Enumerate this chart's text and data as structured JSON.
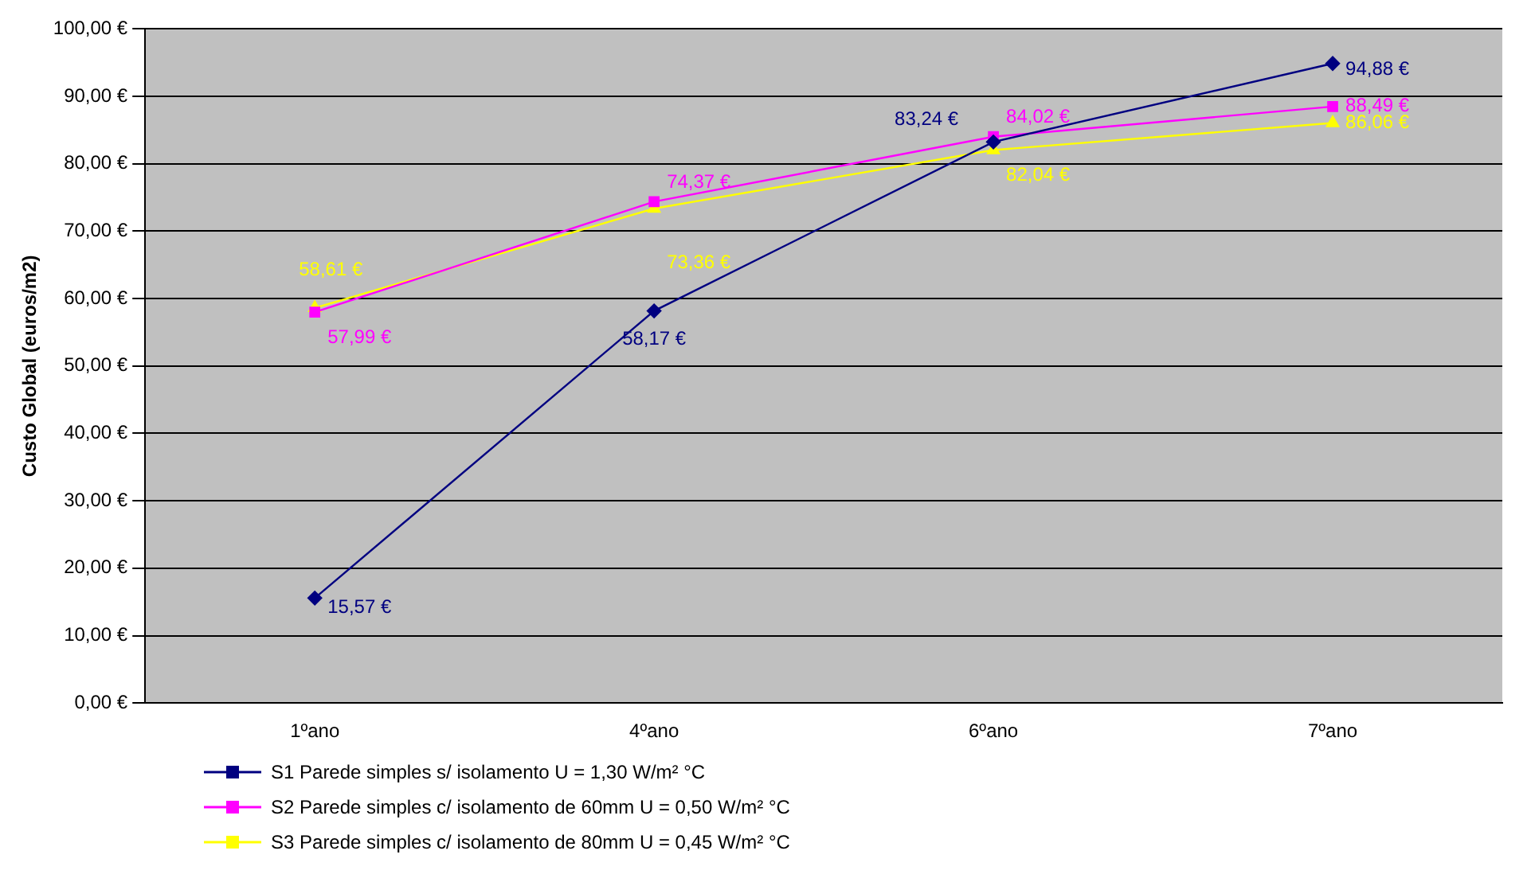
{
  "chart_data": {
    "type": "line",
    "ylabel": "Custo Global (euros/m2)",
    "categories": [
      "1ºano",
      "4ºano",
      "6ºano",
      "7ºano"
    ],
    "series": [
      {
        "name": "S1 Parede simples s/ isolamento U = 1,30 W/m² °C",
        "color": "#000080",
        "marker": "diamond",
        "values": [
          15.57,
          58.17,
          83.24,
          94.88
        ],
        "value_labels": [
          "15,57 €",
          "58,17 €",
          "83,24 €",
          "94,88 €"
        ]
      },
      {
        "name": "S2 Parede simples c/ isolamento de 60mm U = 0,50 W/m² °C",
        "color": "#ff00ff",
        "marker": "square",
        "values": [
          57.99,
          74.37,
          84.02,
          88.49
        ],
        "value_labels": [
          "57,99 €",
          "74,37 €",
          "84,02 €",
          "88,49 €"
        ]
      },
      {
        "name": "S3 Parede simples c/ isolamento de 80mm U = 0,45 W/m² °C",
        "color": "#ffff00",
        "marker": "triangle",
        "values": [
          58.61,
          73.36,
          82.04,
          86.06
        ],
        "value_labels": [
          "58,61 €",
          "73,36 €",
          "82,04 €",
          "86,06 €"
        ]
      }
    ],
    "ylim": [
      0,
      100
    ],
    "yticks": [
      {
        "value": 0,
        "label": "0,00 €"
      },
      {
        "value": 10,
        "label": "10,00 €"
      },
      {
        "value": 20,
        "label": "20,00 €"
      },
      {
        "value": 30,
        "label": "30,00 €"
      },
      {
        "value": 40,
        "label": "40,00 €"
      },
      {
        "value": 50,
        "label": "50,00 €"
      },
      {
        "value": 60,
        "label": "60,00 €"
      },
      {
        "value": 70,
        "label": "70,00 €"
      },
      {
        "value": 80,
        "label": "80,00 €"
      },
      {
        "value": 90,
        "label": "90,00 €"
      },
      {
        "value": 100,
        "label": "100,00 €"
      }
    ],
    "grid": "y",
    "legend": "bottom left"
  }
}
